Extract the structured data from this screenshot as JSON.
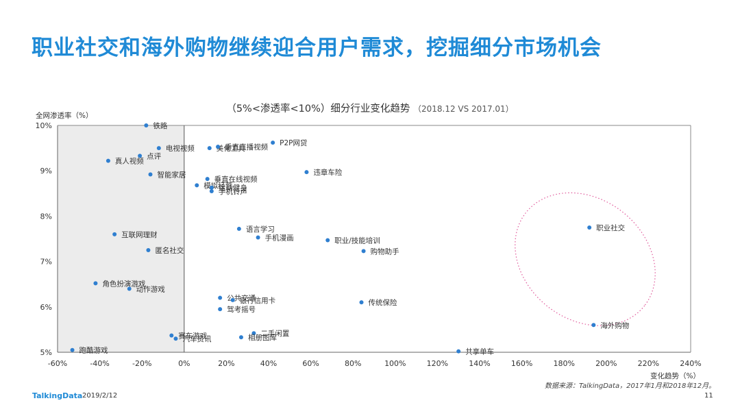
{
  "page": {
    "title": "职业社交和海外购物继续迎合用户需求，挖掘细分市场机会",
    "brand": "TalkingData",
    "date": "2019/2/12",
    "page_number": "11",
    "source": "数据来源：TalkingData，2017年1月和2018年12月。"
  },
  "chart_data": {
    "type": "scatter",
    "title": "（5%<渗透率<10%）细分行业变化趋势",
    "subtitle": "（2018.12  VS 2017.01）",
    "xlabel": "变化趋势（%）",
    "ylabel": "全网渗透率（%）",
    "xlim": [
      -60,
      240
    ],
    "ylim": [
      5,
      10
    ],
    "x_ticks": [
      "-60%",
      "-40%",
      "-20%",
      "0%",
      "20%",
      "40%",
      "60%",
      "80%",
      "100%",
      "120%",
      "140%",
      "160%",
      "180%",
      "200%",
      "220%",
      "240%"
    ],
    "y_ticks": [
      "5%",
      "6%",
      "7%",
      "8%",
      "9%",
      "10%"
    ],
    "shaded_region": [
      -60,
      0
    ],
    "point_color": "#2f7fd0",
    "points": [
      {
        "label": "铁路",
        "x": -18,
        "y": 10.0
      },
      {
        "label": "电视视频",
        "x": -12,
        "y": 9.5
      },
      {
        "label": "点评",
        "x": -21,
        "y": 9.33
      },
      {
        "label": "真人视频",
        "x": -36,
        "y": 9.22
      },
      {
        "label": "美化工具",
        "x": 12,
        "y": 9.5
      },
      {
        "label": "垂直直播视频",
        "x": 16,
        "y": 9.53
      },
      {
        "label": "P2P网贷",
        "x": 42,
        "y": 9.62
      },
      {
        "label": "违章车险",
        "x": 58,
        "y": 8.97
      },
      {
        "label": "智能家居",
        "x": -16,
        "y": 8.92
      },
      {
        "label": "垂直在线视频",
        "x": 11,
        "y": 8.82
      },
      {
        "label": "模拟经营",
        "x": 6,
        "y": 8.68
      },
      {
        "label": "运动健身",
        "x": 13,
        "y": 8.63
      },
      {
        "label": "手机铃声",
        "x": 13,
        "y": 8.55
      },
      {
        "label": "语言学习",
        "x": 26,
        "y": 7.72
      },
      {
        "label": "手机漫画",
        "x": 35,
        "y": 7.53
      },
      {
        "label": "职业/技能培训",
        "x": 68,
        "y": 7.47
      },
      {
        "label": "购物助手",
        "x": 85,
        "y": 7.23
      },
      {
        "label": "职业社交",
        "x": 192,
        "y": 7.75
      },
      {
        "label": "互联网理财",
        "x": -33,
        "y": 7.6
      },
      {
        "label": "匿名社交",
        "x": -17,
        "y": 7.25
      },
      {
        "label": "角色扮演游戏",
        "x": -42,
        "y": 6.52
      },
      {
        "label": "动作游戏",
        "x": -26,
        "y": 6.4
      },
      {
        "label": "公共交通",
        "x": 17,
        "y": 6.2
      },
      {
        "label": "银行信用卡",
        "x": 23,
        "y": 6.15
      },
      {
        "label": "驾考摇号",
        "x": 17,
        "y": 5.95
      },
      {
        "label": "传统保险",
        "x": 84,
        "y": 6.1
      },
      {
        "label": "海外购物",
        "x": 194,
        "y": 5.6
      },
      {
        "label": "赛车游戏",
        "x": -6,
        "y": 5.37
      },
      {
        "label": "汽车资讯",
        "x": -4,
        "y": 5.3
      },
      {
        "label": "二手闲置",
        "x": 33,
        "y": 5.42
      },
      {
        "label": "相册图库",
        "x": 27,
        "y": 5.33
      },
      {
        "label": "跑酷游戏",
        "x": -53,
        "y": 5.05
      },
      {
        "label": "共享单车",
        "x": 130,
        "y": 5.02
      }
    ],
    "highlight_ellipse": {
      "center_x": 190,
      "center_y": 7.05,
      "style": "dotted",
      "color": "#e0589a"
    }
  }
}
